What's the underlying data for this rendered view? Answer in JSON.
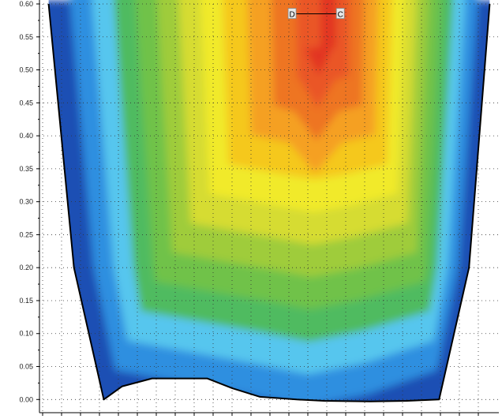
{
  "chart_data": {
    "type": "heatmap",
    "title": "",
    "xlabel": "",
    "ylabel": "",
    "y_ticks": [
      "0.00",
      "0.05",
      "0.10",
      "0.15",
      "0.20",
      "0.25",
      "0.30",
      "0.35",
      "0.40",
      "0.45",
      "0.50",
      "0.55",
      "0.60"
    ],
    "y_tick_values": [
      0.0,
      0.05,
      0.1,
      0.15,
      0.2,
      0.25,
      0.3,
      0.35,
      0.4,
      0.45,
      0.5,
      0.55,
      0.6
    ],
    "ylim": [
      -0.02,
      0.6
    ],
    "x_range": [
      -0.5,
      0.5
    ],
    "grid": true,
    "grid_style": "dotted",
    "colormap": [
      "#1e4fb4",
      "#2f8fe0",
      "#57c6ee",
      "#4fbb60",
      "#6fc248",
      "#9fcc3a",
      "#d6dc30",
      "#f1ea2c",
      "#f5c81e",
      "#f5a023",
      "#ee7424",
      "#ea5626",
      "#e23524"
    ],
    "outline": {
      "left_edge": [
        [
          -0.48,
          0.6
        ],
        [
          -0.425,
          0.2
        ],
        [
          -0.36,
          0.0
        ]
      ],
      "right_edge": [
        [
          0.48,
          0.6
        ],
        [
          0.435,
          0.2
        ],
        [
          0.37,
          0.0
        ]
      ],
      "bottom_edge": [
        [
          -0.36,
          0.0
        ],
        [
          -0.32,
          0.02
        ],
        [
          -0.255,
          0.032
        ],
        [
          -0.135,
          0.032
        ],
        [
          -0.08,
          0.017
        ],
        [
          -0.02,
          0.004
        ],
        [
          0.06,
          0.0
        ],
        [
          0.12,
          -0.002
        ],
        [
          0.22,
          -0.003
        ],
        [
          0.3,
          -0.002
        ],
        [
          0.37,
          0.0
        ]
      ]
    },
    "points": [
      {
        "label": "D",
        "x": 0.05,
        "y": 0.585
      },
      {
        "label": "C",
        "x": 0.155,
        "y": 0.585
      }
    ]
  }
}
